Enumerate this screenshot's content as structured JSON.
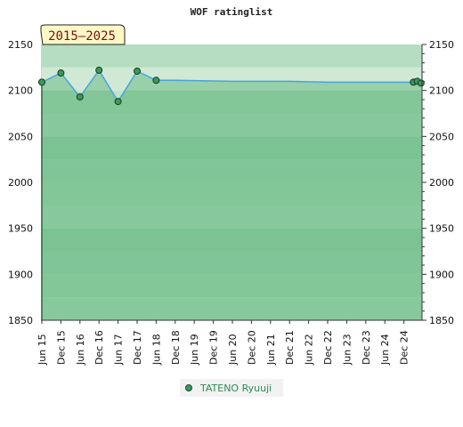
{
  "chart_data": {
    "type": "line",
    "title": "WOF ratinglist",
    "period_label": "2015–2025",
    "xlabel": "",
    "ylabel": "",
    "ylim": [
      1850,
      2150
    ],
    "y_ticks": [
      1850,
      1900,
      1950,
      2000,
      2050,
      2100,
      2150
    ],
    "x_tick_labels": [
      "Jun 15",
      "Dec 15",
      "Jun 16",
      "Dec 16",
      "Jun 17",
      "Dec 17",
      "Jun 18",
      "Dec 18",
      "Jun 19",
      "Dec 19",
      "Jun 20",
      "Dec 20",
      "Jun 21",
      "Dec 21",
      "Jun 22",
      "Dec 22",
      "Jun 23",
      "Dec 23",
      "Jun 24",
      "Dec 24"
    ],
    "x_range": [
      0,
      19.9
    ],
    "legend_position": "bottom",
    "series": [
      {
        "name": "TATENO Ryuuji",
        "color": "#4aa3df",
        "marker_color": "#3a9a5a",
        "points": [
          {
            "x": 0,
            "y": 2109,
            "marker": true
          },
          {
            "x": 1,
            "y": 2119,
            "marker": true
          },
          {
            "x": 2,
            "y": 2093,
            "marker": true
          },
          {
            "x": 3,
            "y": 2122,
            "marker": true
          },
          {
            "x": 4,
            "y": 2088,
            "marker": true
          },
          {
            "x": 5,
            "y": 2121,
            "marker": true
          },
          {
            "x": 6,
            "y": 2111,
            "marker": true
          },
          {
            "x": 7,
            "y": 2111,
            "marker": false
          },
          {
            "x": 10,
            "y": 2110,
            "marker": false
          },
          {
            "x": 13,
            "y": 2110,
            "marker": false
          },
          {
            "x": 15,
            "y": 2109,
            "marker": false
          },
          {
            "x": 19.5,
            "y": 2109,
            "marker": true
          },
          {
            "x": 19.7,
            "y": 2110,
            "marker": true
          },
          {
            "x": 19.9,
            "y": 2108,
            "marker": true
          }
        ]
      }
    ],
    "colors": {
      "band_light": "#b5ddc0",
      "band_mid": "#8dcb9e",
      "band_dark": "#7bc393",
      "fill_under": "#7bc393",
      "above_line": "#d6ecd9",
      "badge_bg": "#fff8c6"
    }
  }
}
